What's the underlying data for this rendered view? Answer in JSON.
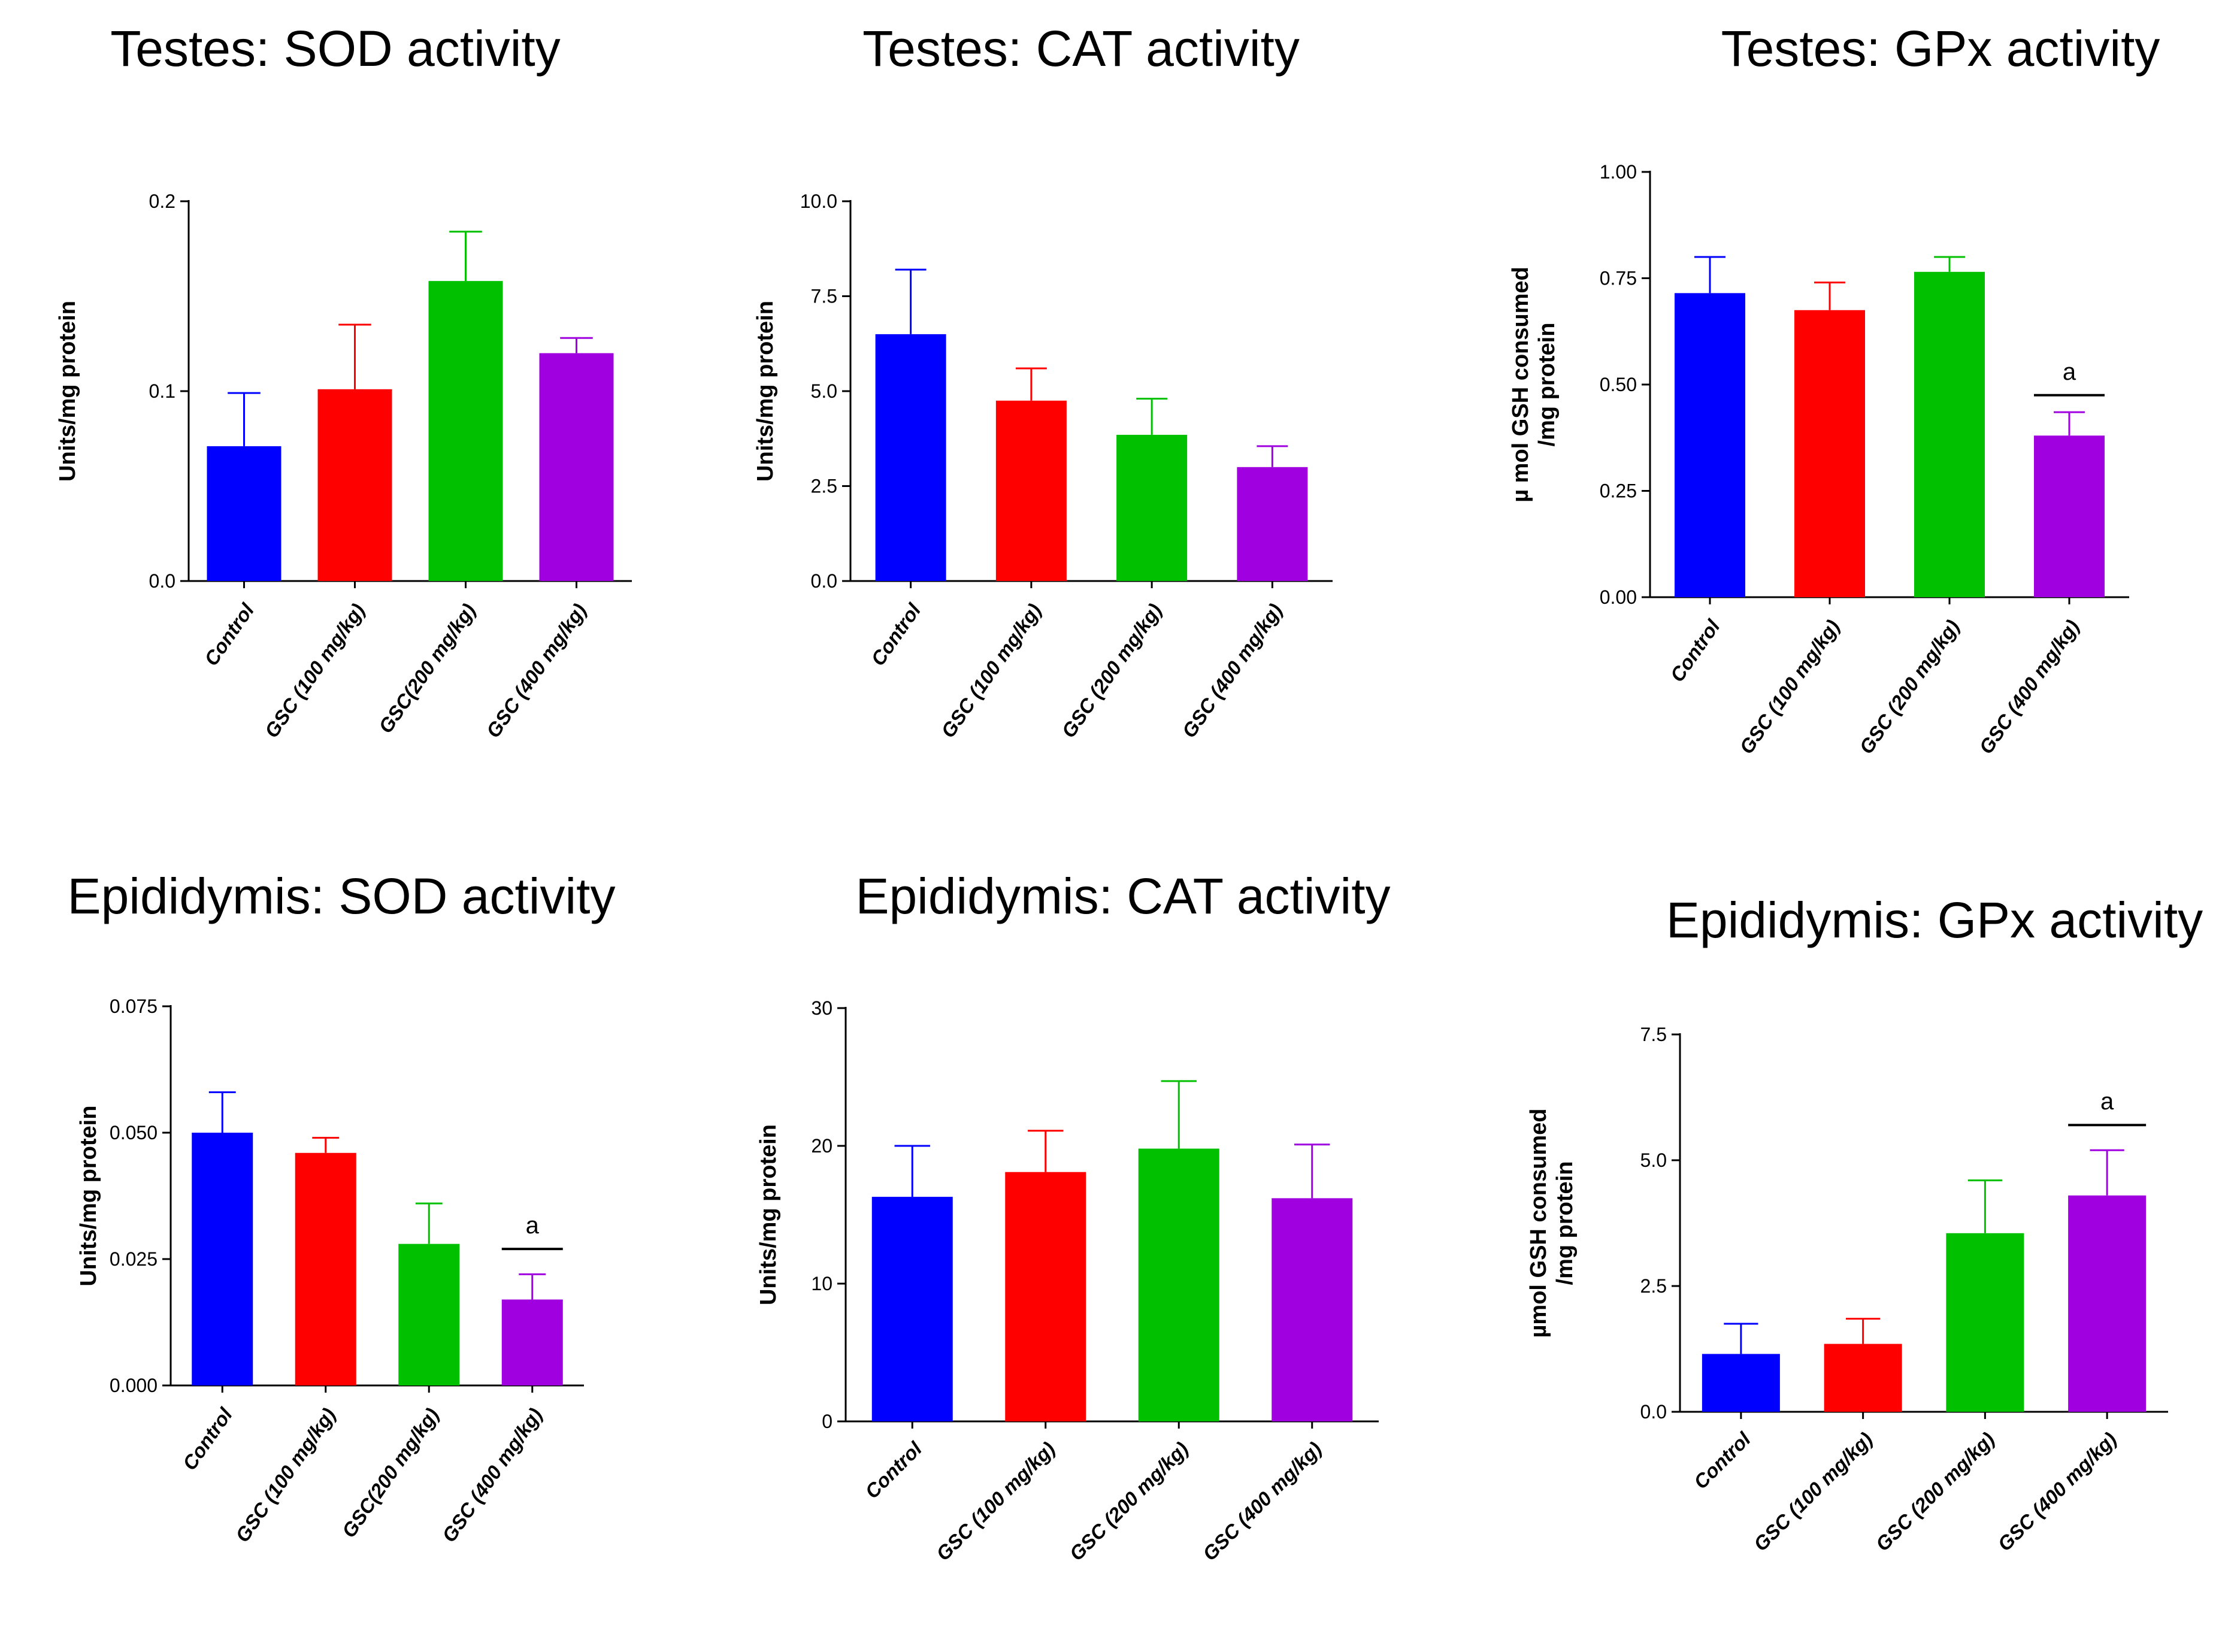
{
  "chart_data": [
    {
      "id": "testes-sod",
      "type": "bar",
      "title": "Testes: SOD activity",
      "ylabel": [
        "Units/mg protein"
      ],
      "categories": [
        "Control",
        "GSC (100 mg/kg)",
        "GSC(200 mg/kg)",
        "GSC (400 mg/kg)"
      ],
      "values": [
        0.071,
        0.101,
        0.158,
        0.12
      ],
      "errors": [
        0.028,
        0.034,
        0.026,
        0.008
      ],
      "colors": [
        "#0000ff",
        "#ff0000",
        "#00c000",
        "#a000e0"
      ],
      "yticks": [
        0.0,
        0.1,
        0.2
      ],
      "ytick_labels": [
        "0.0",
        "0.1",
        "0.2"
      ],
      "ylim": [
        0,
        0.2
      ],
      "annotations": []
    },
    {
      "id": "testes-cat",
      "type": "bar",
      "title": "Testes: CAT activity",
      "ylabel": [
        "Units/mg protein"
      ],
      "categories": [
        "Control",
        "GSC (100 mg/kg)",
        "GSC (200 mg/kg)",
        "GSC (400 mg/kg)"
      ],
      "values": [
        6.5,
        4.75,
        3.85,
        3.0
      ],
      "errors": [
        1.7,
        0.85,
        0.95,
        0.55
      ],
      "colors": [
        "#0000ff",
        "#ff0000",
        "#00c000",
        "#a000e0"
      ],
      "yticks": [
        0.0,
        2.5,
        5.0,
        7.5,
        10.0
      ],
      "ytick_labels": [
        "0.0",
        "2.5",
        "5.0",
        "7.5",
        "10.0"
      ],
      "ylim": [
        0,
        10
      ],
      "annotations": []
    },
    {
      "id": "testes-gpx",
      "type": "bar",
      "title": "Testes: GPx activity",
      "ylabel": [
        "µ mol GSH consumed",
        "/mg protein"
      ],
      "categories": [
        "Control",
        "GSC (100 mg/kg)",
        "GSC (200 mg/kg)",
        "GSC (400 mg/kg)"
      ],
      "values": [
        0.715,
        0.675,
        0.765,
        0.38
      ],
      "errors": [
        0.085,
        0.065,
        0.035,
        0.055
      ],
      "colors": [
        "#0000ff",
        "#ff0000",
        "#00c000",
        "#a000e0"
      ],
      "yticks": [
        0.0,
        0.25,
        0.5,
        0.75,
        1.0
      ],
      "ytick_labels": [
        "0.00",
        "0.25",
        "0.50",
        "0.75",
        "1.00"
      ],
      "ylim": [
        0,
        1.0
      ],
      "annotations": [
        {
          "bar": 3,
          "text": "a",
          "y": 0.475
        }
      ]
    },
    {
      "id": "epididymis-sod",
      "type": "bar",
      "title": "Epididymis: SOD activity",
      "ylabel": [
        "Units/mg protein"
      ],
      "categories": [
        "Control",
        "GSC (100 mg/kg)",
        "GSC(200 mg/kg)",
        "GSC (400 mg/kg)"
      ],
      "values": [
        0.05,
        0.046,
        0.028,
        0.017
      ],
      "errors": [
        0.008,
        0.003,
        0.008,
        0.005
      ],
      "colors": [
        "#0000ff",
        "#ff0000",
        "#00c000",
        "#a000e0"
      ],
      "yticks": [
        0.0,
        0.025,
        0.05,
        0.075
      ],
      "ytick_labels": [
        "0.000",
        "0.025",
        "0.050",
        "0.075"
      ],
      "ylim": [
        0,
        0.075
      ],
      "annotations": [
        {
          "bar": 3,
          "text": "a",
          "y": 0.027
        }
      ]
    },
    {
      "id": "epididymis-cat",
      "type": "bar",
      "title": "Epididymis: CAT activity",
      "ylabel": [
        "Units/mg protein"
      ],
      "categories": [
        "Control",
        "GSC (100 mg/kg)",
        "GSC (200 mg/kg)",
        "GSC (400 mg/kg)"
      ],
      "values": [
        16.3,
        18.1,
        19.8,
        16.2
      ],
      "errors": [
        3.7,
        3.0,
        4.9,
        3.9
      ],
      "colors": [
        "#0000ff",
        "#ff0000",
        "#00c000",
        "#a000e0"
      ],
      "yticks": [
        0,
        10,
        20,
        30
      ],
      "ytick_labels": [
        "0",
        "10",
        "20",
        "30"
      ],
      "ylim": [
        0,
        30
      ],
      "annotations": []
    },
    {
      "id": "epididymis-gpx",
      "type": "bar",
      "title": "Epididymis: GPx activity",
      "ylabel": [
        "µmol GSH consumed",
        "/mg protein"
      ],
      "categories": [
        "Control",
        "GSC (100 mg/kg)",
        "GSC (200 mg/kg)",
        "GSC (400 mg/kg)"
      ],
      "values": [
        1.15,
        1.35,
        3.55,
        4.3
      ],
      "errors": [
        0.6,
        0.5,
        1.05,
        0.9
      ],
      "colors": [
        "#0000ff",
        "#ff0000",
        "#00c000",
        "#a000e0"
      ],
      "yticks": [
        0.0,
        2.5,
        5.0,
        7.5
      ],
      "ytick_labels": [
        "0.0",
        "2.5",
        "5.0",
        "7.5"
      ],
      "ylim": [
        0,
        7.5
      ],
      "annotations": [
        {
          "bar": 3,
          "text": "a",
          "y": 5.7
        }
      ]
    }
  ]
}
